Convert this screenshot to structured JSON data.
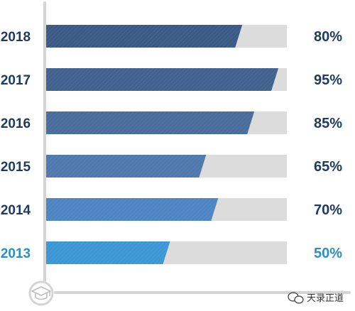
{
  "chart_data": {
    "type": "bar",
    "orientation": "horizontal",
    "categories": [
      "2018",
      "2017",
      "2016",
      "2015",
      "2014",
      "2013"
    ],
    "values": [
      80,
      95,
      85,
      65,
      70,
      50
    ],
    "value_labels": [
      "80%",
      "95%",
      "85%",
      "65%",
      "70%",
      "50%"
    ],
    "xlim": [
      0,
      100
    ],
    "grid": false,
    "legend": "none",
    "colors": {
      "bars": [
        "#3a5a85",
        "#41628f",
        "#486c9c",
        "#4f78ad",
        "#4d84c2",
        "#3b97d3"
      ],
      "labels": [
        "#1f3a5f",
        "#1f3a5f",
        "#1f3a5f",
        "#1f3a5f",
        "#1f3a5f",
        "#2b8fc7"
      ],
      "track": "#dcdcdc",
      "axis": "#d4d4d4"
    }
  },
  "icons": {
    "axis_badge": "graduation-cap-icon",
    "watermark": "wechat-icon"
  },
  "watermark": {
    "text": "天录正道"
  }
}
